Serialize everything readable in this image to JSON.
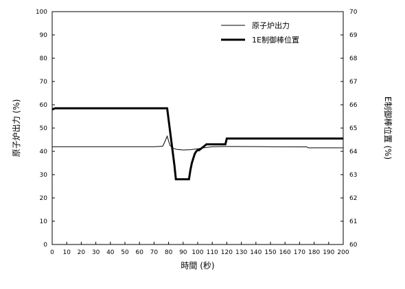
{
  "chart_data": {
    "type": "line",
    "xlabel": "時間 (秒)",
    "ylabel": "原子炉出力 (%)",
    "y2label": "E制御棒位置 (%)",
    "xlim": [
      0,
      200
    ],
    "ylim": [
      0,
      100
    ],
    "y2lim": [
      60,
      70
    ],
    "xticks": [
      0,
      10,
      20,
      30,
      40,
      50,
      60,
      70,
      80,
      90,
      100,
      110,
      120,
      130,
      140,
      150,
      160,
      170,
      180,
      190,
      200
    ],
    "yticks": [
      0,
      10,
      20,
      30,
      40,
      50,
      60,
      70,
      80,
      90,
      100
    ],
    "y2ticks": [
      60,
      61,
      62,
      63,
      64,
      65,
      66,
      67,
      68,
      69,
      70
    ],
    "grid": false,
    "legend_position": "top-right",
    "series": [
      {
        "name": "原子炉出力",
        "axis": "left",
        "color": "#000000",
        "style": "thin",
        "x": [
          0,
          10,
          20,
          30,
          40,
          50,
          60,
          70,
          76,
          78,
          79,
          80,
          81,
          83,
          86,
          90,
          95,
          100,
          105,
          110,
          120,
          150,
          175,
          176,
          200
        ],
        "y": [
          42,
          42,
          42,
          42,
          42,
          42,
          42,
          42,
          42.2,
          45,
          46.5,
          44.5,
          42.5,
          41.3,
          40.8,
          40.6,
          40.7,
          41.1,
          41.6,
          42,
          42.1,
          42,
          41.9,
          41.5,
          41.5
        ]
      },
      {
        "name": "1E制御棒位置",
        "axis": "right",
        "color": "#000000",
        "style": "thick",
        "x": [
          0,
          2,
          79,
          84,
          85,
          94,
          95,
          96,
          97,
          98,
          99,
          100,
          101,
          105,
          106,
          119,
          120,
          200
        ],
        "y": [
          65.8,
          65.85,
          65.85,
          63.4,
          62.8,
          62.8,
          63.2,
          63.5,
          63.7,
          63.9,
          64.0,
          64.05,
          64.05,
          64.25,
          64.3,
          64.3,
          64.55,
          64.55
        ]
      }
    ]
  }
}
